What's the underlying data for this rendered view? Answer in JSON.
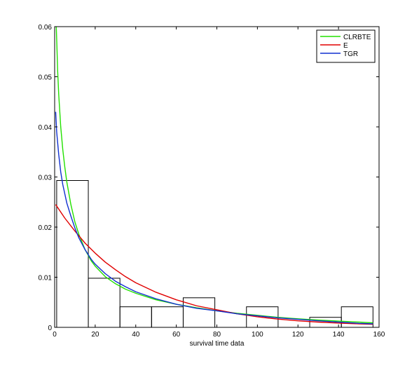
{
  "chart_data": {
    "type": "line",
    "title": "",
    "xlabel": "survival time data",
    "ylabel": "",
    "xlim": [
      0,
      160
    ],
    "ylim": [
      0,
      0.06
    ],
    "xticks": [
      "0",
      "20",
      "40",
      "60",
      "80",
      "100",
      "120",
      "140",
      "160"
    ],
    "xtick_values": [
      0,
      20,
      40,
      60,
      80,
      100,
      120,
      140,
      160
    ],
    "yticks": [
      "0",
      "0.01",
      "0.02",
      "0.03",
      "0.04",
      "0.05",
      "0.06"
    ],
    "ytick_values": [
      0,
      0.01,
      0.02,
      0.03,
      0.04,
      0.05,
      0.06
    ],
    "grid": false,
    "legend_position": "top-right",
    "histogram": {
      "bin_edges": [
        1.0,
        16.6,
        32.2,
        47.8,
        63.4,
        79.0,
        94.6,
        110.2,
        125.8,
        141.4,
        157.0
      ],
      "densities": [
        0.0293,
        0.0098,
        0.0041,
        0.0041,
        0.0059,
        0.0,
        0.0041,
        0.0,
        0.002,
        0.0041
      ],
      "edge_color": "#000000"
    },
    "series": [
      {
        "name": "CLRBTE",
        "color": "#22e000",
        "x": [
          0.8,
          1.0,
          1.5,
          2,
          3,
          4,
          5,
          6,
          8,
          10,
          12,
          15,
          18,
          20,
          25,
          30,
          35,
          40,
          50,
          60,
          70,
          80,
          90,
          100,
          110,
          120,
          130,
          140,
          150,
          157
        ],
        "y": [
          0.06,
          0.0575,
          0.051,
          0.0465,
          0.04,
          0.0355,
          0.032,
          0.029,
          0.0245,
          0.021,
          0.0185,
          0.0155,
          0.0133,
          0.0122,
          0.0101,
          0.0087,
          0.0076,
          0.0068,
          0.0055,
          0.0046,
          0.0039,
          0.0033,
          0.0028,
          0.0024,
          0.002,
          0.0017,
          0.00145,
          0.00125,
          0.00105,
          0.0009
        ]
      },
      {
        "name": "E",
        "color": "#e00000",
        "x": [
          0.5,
          5,
          10,
          15,
          20,
          25,
          30,
          35,
          40,
          50,
          60,
          70,
          80,
          90,
          100,
          110,
          120,
          130,
          140,
          150,
          157
        ],
        "y": [
          0.0245,
          0.0218,
          0.0192,
          0.0168,
          0.0148,
          0.013,
          0.0115,
          0.0101,
          0.0089,
          0.007,
          0.0055,
          0.0043,
          0.0035,
          0.0027,
          0.0021,
          0.00165,
          0.0013,
          0.00105,
          0.00085,
          0.0007,
          0.0006
        ]
      },
      {
        "name": "TGR",
        "color": "#1030d0",
        "x": [
          0.5,
          1,
          2,
          3,
          4,
          6,
          8,
          10,
          12,
          15,
          18,
          20,
          25,
          30,
          35,
          40,
          50,
          60,
          70,
          80,
          90,
          100,
          110,
          120,
          130,
          140,
          150,
          157
        ],
        "y": [
          0.043,
          0.039,
          0.0345,
          0.031,
          0.0285,
          0.0248,
          0.0222,
          0.0198,
          0.0178,
          0.0155,
          0.0136,
          0.0126,
          0.0107,
          0.0092,
          0.0081,
          0.0071,
          0.0057,
          0.0046,
          0.0038,
          0.0033,
          0.0027,
          0.0023,
          0.0019,
          0.0016,
          0.0013,
          0.00105,
          0.0008,
          0.0007
        ]
      }
    ]
  }
}
